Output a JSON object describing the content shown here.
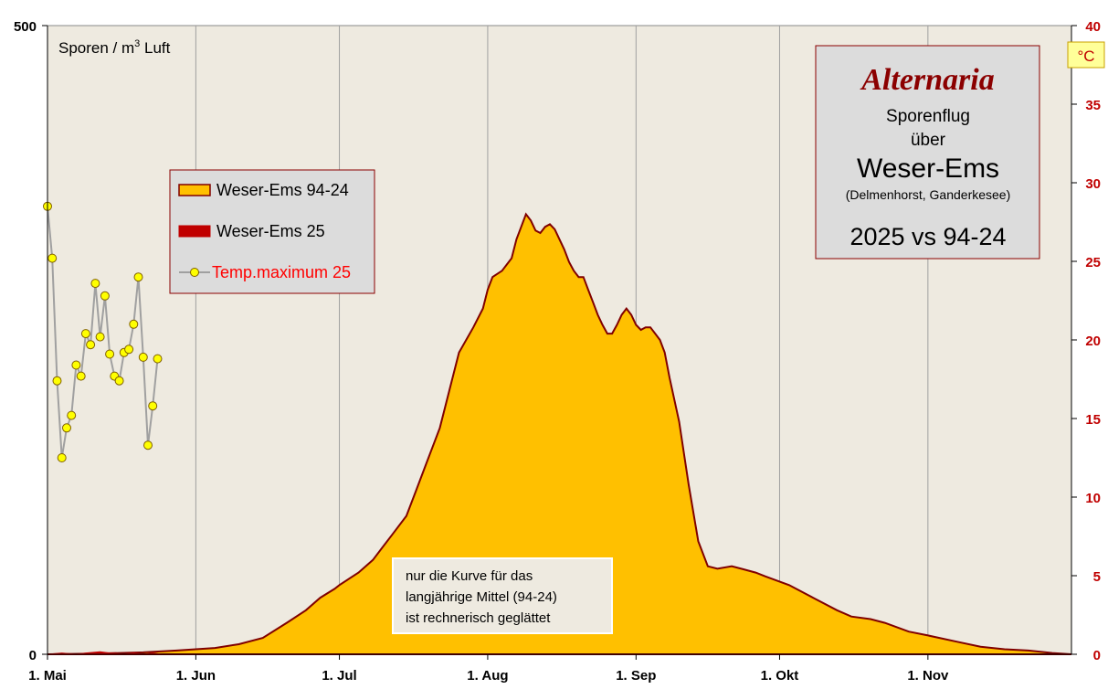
{
  "colors": {
    "plot_bg": "#eeeae0",
    "area_fill": "#ffc000",
    "area_line": "#800000",
    "season25": "#c00000",
    "temp_line": "#a0a0a0",
    "temp_marker": "#ffff00",
    "right_axis": "#c00000",
    "grid": "#a0a0a0"
  },
  "chart_data": {
    "type": "area",
    "y_left": {
      "label_prefix": "Sporen / m",
      "label_sup": "3",
      "label_suffix": " Luft",
      "range": [
        0,
        500
      ],
      "tick_top": "500",
      "tick_bottom": "0"
    },
    "y_right": {
      "unit": "°C",
      "range": [
        0,
        40
      ],
      "ticks": [
        "0",
        "5",
        "10",
        "15",
        "20",
        "25",
        "30",
        "35",
        "40"
      ]
    },
    "x": {
      "range_days": [
        0,
        214
      ],
      "ticks": [
        {
          "label": "1. Mai",
          "day": 0
        },
        {
          "label": "1. Jun",
          "day": 31
        },
        {
          "label": "1. Jul",
          "day": 61
        },
        {
          "label": "1. Aug",
          "day": 92
        },
        {
          "label": "1. Sep",
          "day": 123
        },
        {
          "label": "1. Okt",
          "day": 153
        },
        {
          "label": "1. Nov",
          "day": 184
        }
      ]
    },
    "legend": {
      "placement": "upper-left",
      "items": [
        "Weser-Ems 94-24",
        "Weser-Ems 25",
        "Temp.maximum 25"
      ]
    },
    "title_box": {
      "title": "Alternaria",
      "line1": "Sporenflug",
      "line2": "über",
      "line3": "Weser-Ems",
      "line4": "(Delmenhorst,  Ganderkesee)",
      "line5": "2025 vs 94-24"
    },
    "note": [
      "nur die Kurve für das",
      "langjährige  Mittel  (94-24)",
      "ist rechnerisch  geglättet"
    ],
    "series": [
      {
        "name": "Weser-Ems 94-24",
        "kind": "area",
        "points": [
          [
            0,
            0
          ],
          [
            10,
            0.5
          ],
          [
            20,
            1.5
          ],
          [
            27,
            3
          ],
          [
            31,
            4
          ],
          [
            35,
            5
          ],
          [
            40,
            8
          ],
          [
            45,
            13
          ],
          [
            50,
            25
          ],
          [
            54,
            35
          ],
          [
            57,
            45
          ],
          [
            60,
            52
          ],
          [
            61,
            55
          ],
          [
            65,
            65
          ],
          [
            68,
            75
          ],
          [
            70,
            85
          ],
          [
            72,
            95
          ],
          [
            75,
            110
          ],
          [
            77,
            130
          ],
          [
            79,
            150
          ],
          [
            82,
            180
          ],
          [
            84,
            210
          ],
          [
            86,
            240
          ],
          [
            89,
            260
          ],
          [
            91,
            275
          ],
          [
            92,
            290
          ],
          [
            93,
            300
          ],
          [
            95,
            305
          ],
          [
            96,
            310
          ],
          [
            97,
            315
          ],
          [
            98,
            330
          ],
          [
            99,
            340
          ],
          [
            100,
            350
          ],
          [
            101,
            345
          ],
          [
            102,
            337
          ],
          [
            103,
            335
          ],
          [
            104,
            340
          ],
          [
            105,
            342
          ],
          [
            106,
            338
          ],
          [
            107,
            330
          ],
          [
            108,
            322
          ],
          [
            109,
            312
          ],
          [
            110,
            305
          ],
          [
            111,
            300
          ],
          [
            112,
            300
          ],
          [
            113,
            290
          ],
          [
            114,
            280
          ],
          [
            115,
            270
          ],
          [
            116,
            262
          ],
          [
            117,
            255
          ],
          [
            118,
            255
          ],
          [
            119,
            262
          ],
          [
            120,
            270
          ],
          [
            121,
            275
          ],
          [
            122,
            270
          ],
          [
            123,
            262
          ],
          [
            124,
            258
          ],
          [
            125,
            260
          ],
          [
            126,
            260
          ],
          [
            127,
            255
          ],
          [
            128,
            250
          ],
          [
            129,
            240
          ],
          [
            130,
            220
          ],
          [
            132,
            185
          ],
          [
            134,
            135
          ],
          [
            136,
            90
          ],
          [
            138,
            70
          ],
          [
            140,
            68
          ],
          [
            143,
            70
          ],
          [
            145,
            68
          ],
          [
            148,
            65
          ],
          [
            150,
            62
          ],
          [
            155,
            55
          ],
          [
            160,
            45
          ],
          [
            165,
            35
          ],
          [
            168,
            30
          ],
          [
            172,
            28
          ],
          [
            175,
            25
          ],
          [
            180,
            18
          ],
          [
            184,
            15
          ],
          [
            190,
            10
          ],
          [
            195,
            6
          ],
          [
            200,
            4
          ],
          [
            205,
            3
          ],
          [
            210,
            1
          ],
          [
            214,
            0
          ]
        ]
      },
      {
        "name": "Weser-Ems 25",
        "kind": "area",
        "points": [
          [
            0,
            0
          ],
          [
            3,
            1
          ],
          [
            6,
            0
          ],
          [
            8,
            1
          ],
          [
            11,
            2
          ],
          [
            13,
            1
          ],
          [
            16,
            0
          ],
          [
            18,
            1
          ],
          [
            20,
            0
          ],
          [
            22,
            1
          ],
          [
            24,
            0
          ]
        ]
      },
      {
        "name": "Temp.maximum 25",
        "kind": "line",
        "axis": "right",
        "points": [
          [
            0,
            28.5
          ],
          [
            1,
            25.2
          ],
          [
            2,
            17.4
          ],
          [
            3,
            12.5
          ],
          [
            4,
            14.4
          ],
          [
            5,
            15.2
          ],
          [
            6,
            18.4
          ],
          [
            7,
            17.7
          ],
          [
            8,
            20.4
          ],
          [
            9,
            19.7
          ],
          [
            10,
            23.6
          ],
          [
            11,
            20.2
          ],
          [
            12,
            22.8
          ],
          [
            13,
            19.1
          ],
          [
            14,
            17.7
          ],
          [
            15,
            17.4
          ],
          [
            16,
            19.2
          ],
          [
            17,
            19.4
          ],
          [
            18,
            21.0
          ],
          [
            19,
            24.0
          ],
          [
            20,
            18.9
          ],
          [
            21,
            13.3
          ],
          [
            22,
            15.8
          ],
          [
            23,
            18.8
          ]
        ]
      }
    ]
  }
}
